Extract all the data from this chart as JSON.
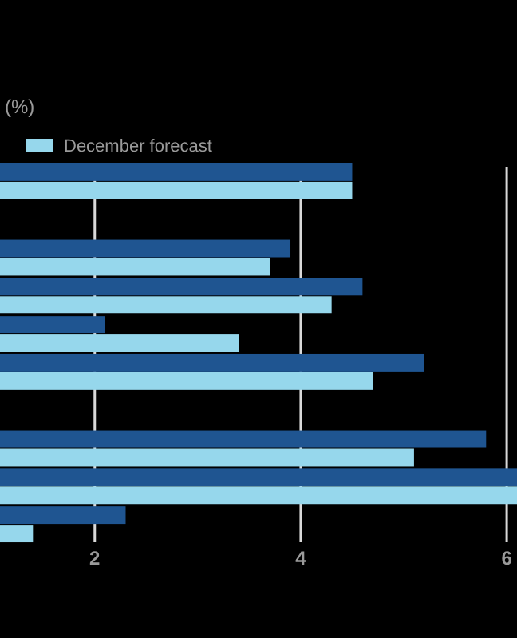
{
  "chart_data": {
    "type": "bar",
    "orientation": "horizontal",
    "title": "(%)",
    "categories": [
      null,
      null,
      null,
      null,
      null,
      null,
      null,
      null,
      null,
      null
    ],
    "series": [
      {
        "color": "#1f5591",
        "values": [
          4.5,
          null,
          3.9,
          4.6,
          2.1,
          5.2,
          null,
          5.8,
          6.1,
          2.3
        ]
      },
      {
        "name": "December forecast",
        "color": "#96d7ec",
        "values": [
          4.5,
          null,
          3.7,
          4.3,
          3.4,
          4.7,
          null,
          5.1,
          6.1,
          1.4
        ]
      }
    ],
    "xlim": [
      1.08,
      6.1
    ],
    "xticks": [
      2,
      4,
      6
    ],
    "grid": "x",
    "legend": "top left",
    "tick_labels": "x"
  }
}
